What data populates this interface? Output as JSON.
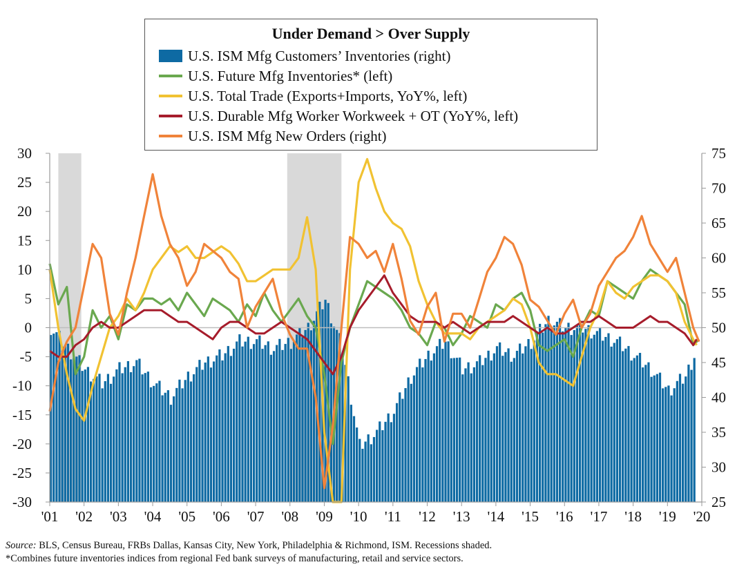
{
  "chart_data": {
    "type": "bar+line",
    "title": "Under Demand > Over Supply",
    "y_left": {
      "range": [
        -30,
        30
      ],
      "ticks": [
        "30",
        "25",
        "20",
        "15",
        "10",
        "5",
        "0",
        "-5",
        "-10",
        "-15",
        "-20",
        "-25",
        "-30"
      ]
    },
    "y_right": {
      "range": [
        25,
        75
      ],
      "ticks": [
        "75",
        "70",
        "65",
        "60",
        "55",
        "50",
        "45",
        "40",
        "35",
        "30",
        "25"
      ]
    },
    "x_range": [
      2001.0,
      2020.0
    ],
    "x_ticks": [
      "'01",
      "'02",
      "'03",
      "'04",
      "'05",
      "'06",
      "'07",
      "'08",
      "'09",
      "'10",
      "'11",
      "'12",
      "'13",
      "'14",
      "'15",
      "'16",
      "'17",
      "'18",
      "'19",
      "'20"
    ],
    "recessions": [
      [
        2001.25,
        2001.92
      ],
      [
        2007.92,
        2009.5
      ]
    ],
    "series": [
      {
        "name": "U.S. ISM Mfg Customers’ Inventories (right)",
        "kind": "bar",
        "axis": "right",
        "color": "#0e6aa3",
        "x": [
          2001.0,
          2001.5,
          2002.0,
          2002.5,
          2003.0,
          2003.5,
          2004.0,
          2004.5,
          2005.0,
          2005.5,
          2006.0,
          2006.5,
          2007.0,
          2007.5,
          2008.0,
          2008.5,
          2009.0,
          2009.5,
          2010.0,
          2010.5,
          2011.0,
          2011.5,
          2012.0,
          2012.5,
          2013.0,
          2013.5,
          2014.0,
          2014.5,
          2015.0,
          2015.5,
          2016.0,
          2016.5,
          2017.0,
          2017.5,
          2018.0,
          2018.5,
          2019.0,
          2019.5,
          2019.75
        ],
        "values": [
          50,
          47,
          44,
          42,
          44,
          45,
          42,
          40,
          43,
          45,
          46,
          48,
          48,
          47,
          48,
          50,
          54,
          47,
          33,
          35,
          38,
          43,
          46,
          48,
          44,
          45,
          47,
          46,
          48,
          51,
          50,
          50,
          49,
          48,
          46,
          44,
          41,
          43,
          46
        ]
      },
      {
        "name": "U.S. Future Mfg Inventories* (left)",
        "kind": "line",
        "axis": "left",
        "color": "#6aa84f",
        "x": [
          2001.0,
          2001.25,
          2001.5,
          2001.75,
          2002.0,
          2002.25,
          2002.5,
          2002.75,
          2003.0,
          2003.25,
          2003.5,
          2003.75,
          2004.0,
          2004.25,
          2004.5,
          2004.75,
          2005.0,
          2005.25,
          2005.5,
          2005.75,
          2006.0,
          2006.25,
          2006.5,
          2006.75,
          2007.0,
          2007.25,
          2007.5,
          2007.75,
          2008.0,
          2008.25,
          2008.5,
          2008.75,
          2009.0,
          2009.25,
          2009.5,
          2009.75,
          2010.0,
          2010.25,
          2010.5,
          2010.75,
          2011.0,
          2011.25,
          2011.5,
          2011.75,
          2012.0,
          2012.25,
          2012.5,
          2012.75,
          2013.0,
          2013.25,
          2013.5,
          2013.75,
          2014.0,
          2014.25,
          2014.5,
          2014.75,
          2015.0,
          2015.25,
          2015.5,
          2015.75,
          2016.0,
          2016.25,
          2016.5,
          2016.75,
          2017.0,
          2017.25,
          2017.5,
          2017.75,
          2018.0,
          2018.25,
          2018.5,
          2018.75,
          2019.0,
          2019.25,
          2019.5,
          2019.75,
          2019.92
        ],
        "values": [
          11,
          4,
          7,
          -8,
          -5,
          3,
          0,
          2,
          -2,
          4,
          3,
          5,
          5,
          4,
          5,
          3,
          6,
          4,
          2,
          5,
          4,
          3,
          1,
          4,
          2,
          6,
          3,
          1,
          3,
          5,
          2,
          0,
          -8,
          -20,
          -6,
          0,
          4,
          8,
          7,
          6,
          5,
          3,
          0,
          -1,
          -3,
          1,
          0,
          -3,
          -1,
          2,
          1,
          0,
          4,
          3,
          5,
          6,
          3,
          -3,
          -4,
          -3,
          -2,
          -5,
          0,
          3,
          2,
          8,
          7,
          6,
          5,
          8,
          10,
          9,
          8,
          6,
          4,
          -3,
          -2
        ]
      },
      {
        "name": "U.S. Total Trade (Exports+Imports, YoY%, left)",
        "kind": "line",
        "axis": "left",
        "color": "#f1c232",
        "x": [
          2001.0,
          2001.25,
          2001.5,
          2001.75,
          2002.0,
          2002.25,
          2002.5,
          2002.75,
          2003.0,
          2003.25,
          2003.5,
          2003.75,
          2004.0,
          2004.25,
          2004.5,
          2004.75,
          2005.0,
          2005.25,
          2005.5,
          2005.75,
          2006.0,
          2006.25,
          2006.5,
          2006.75,
          2007.0,
          2007.25,
          2007.5,
          2007.75,
          2008.0,
          2008.25,
          2008.5,
          2008.75,
          2009.0,
          2009.25,
          2009.5,
          2009.75,
          2010.0,
          2010.25,
          2010.5,
          2010.75,
          2011.0,
          2011.25,
          2011.5,
          2011.75,
          2012.0,
          2012.25,
          2012.5,
          2012.75,
          2013.0,
          2013.25,
          2013.5,
          2013.75,
          2014.0,
          2014.25,
          2014.5,
          2014.75,
          2015.0,
          2015.25,
          2015.5,
          2015.75,
          2016.0,
          2016.25,
          2016.5,
          2016.75,
          2017.0,
          2017.25,
          2017.5,
          2017.75,
          2018.0,
          2018.25,
          2018.5,
          2018.75,
          2019.0,
          2019.25,
          2019.5,
          2019.75,
          2019.85
        ],
        "values": [
          10,
          0,
          -8,
          -14,
          -16,
          -10,
          -5,
          0,
          2,
          5,
          3,
          6,
          10,
          12,
          14,
          13,
          14,
          12,
          12,
          13,
          14,
          13,
          11,
          8,
          8,
          9,
          10,
          10,
          10,
          12,
          19,
          10,
          -18,
          -30,
          -30,
          10,
          25,
          29,
          24,
          20,
          18,
          17,
          14,
          8,
          4,
          1,
          -1,
          -1,
          -1,
          -2,
          0,
          1,
          2,
          3,
          5,
          4,
          0,
          -6,
          -8,
          -8,
          -9,
          -10,
          -5,
          0,
          3,
          8,
          6,
          5,
          7,
          8,
          9,
          9,
          8,
          6,
          1,
          -2,
          -3
        ]
      },
      {
        "name": "U.S. Durable Mfg Worker Workweek + OT (YoY%, left)",
        "kind": "line",
        "axis": "left",
        "color": "#a61c2b",
        "x": [
          2001.0,
          2001.25,
          2001.5,
          2001.75,
          2002.0,
          2002.25,
          2002.5,
          2002.75,
          2003.0,
          2003.25,
          2003.5,
          2003.75,
          2004.0,
          2004.25,
          2004.5,
          2004.75,
          2005.0,
          2005.25,
          2005.5,
          2005.75,
          2006.0,
          2006.25,
          2006.5,
          2006.75,
          2007.0,
          2007.25,
          2007.5,
          2007.75,
          2008.0,
          2008.25,
          2008.5,
          2008.75,
          2009.0,
          2009.25,
          2009.5,
          2009.75,
          2010.0,
          2010.25,
          2010.5,
          2010.75,
          2011.0,
          2011.25,
          2011.5,
          2011.75,
          2012.0,
          2012.25,
          2012.5,
          2012.75,
          2013.0,
          2013.25,
          2013.5,
          2013.75,
          2014.0,
          2014.25,
          2014.5,
          2014.75,
          2015.0,
          2015.25,
          2015.5,
          2015.75,
          2016.0,
          2016.25,
          2016.5,
          2016.75,
          2017.0,
          2017.25,
          2017.5,
          2017.75,
          2018.0,
          2018.25,
          2018.5,
          2018.75,
          2019.0,
          2019.25,
          2019.5,
          2019.75,
          2019.85
        ],
        "values": [
          -4,
          -5,
          -5,
          -3,
          -2,
          0,
          1,
          0,
          0,
          1,
          2,
          3,
          3,
          3,
          2,
          1,
          1,
          0,
          -1,
          -2,
          0,
          1,
          1,
          0,
          -1,
          -1,
          0,
          1,
          0,
          -1,
          -2,
          -4,
          -6,
          -8,
          -5,
          0,
          3,
          5,
          7,
          9,
          6,
          4,
          2,
          1,
          1,
          1,
          0,
          1,
          0,
          -1,
          0,
          1,
          1,
          1,
          2,
          1,
          0,
          -1,
          0,
          -1,
          -1,
          0,
          1,
          1,
          2,
          1,
          0,
          0,
          0,
          1,
          2,
          1,
          1,
          0,
          -1,
          -3,
          -2
        ]
      },
      {
        "name": "U.S. ISM Mfg New Orders (right)",
        "kind": "line",
        "axis": "right",
        "color": "#f0833a",
        "x": [
          2001.0,
          2001.25,
          2001.5,
          2001.75,
          2002.0,
          2002.25,
          2002.5,
          2002.75,
          2003.0,
          2003.25,
          2003.5,
          2003.75,
          2004.0,
          2004.25,
          2004.5,
          2004.75,
          2005.0,
          2005.25,
          2005.5,
          2005.75,
          2006.0,
          2006.25,
          2006.5,
          2006.75,
          2007.0,
          2007.25,
          2007.5,
          2007.75,
          2008.0,
          2008.25,
          2008.5,
          2008.75,
          2009.0,
          2009.25,
          2009.5,
          2009.75,
          2010.0,
          2010.25,
          2010.5,
          2010.75,
          2011.0,
          2011.25,
          2011.5,
          2011.75,
          2012.0,
          2012.25,
          2012.5,
          2012.75,
          2013.0,
          2013.25,
          2013.5,
          2013.75,
          2014.0,
          2014.25,
          2014.5,
          2014.75,
          2015.0,
          2015.25,
          2015.5,
          2015.75,
          2016.0,
          2016.25,
          2016.5,
          2016.75,
          2017.0,
          2017.25,
          2017.5,
          2017.75,
          2018.0,
          2018.25,
          2018.5,
          2018.75,
          2019.0,
          2019.25,
          2019.5,
          2019.75,
          2019.92
        ],
        "values": [
          38,
          45,
          48,
          50,
          56,
          62,
          60,
          52,
          49,
          55,
          60,
          66,
          72,
          66,
          62,
          60,
          56,
          58,
          62,
          61,
          60,
          58,
          57,
          50,
          53,
          55,
          57,
          52,
          49,
          47,
          47,
          40,
          27,
          36,
          50,
          63,
          62,
          60,
          61,
          58,
          62,
          57,
          51,
          49,
          53,
          55,
          48,
          52,
          52,
          50,
          54,
          58,
          60,
          63,
          62,
          59,
          54,
          53,
          51,
          49,
          52,
          54,
          50,
          52,
          56,
          58,
          60,
          61,
          63,
          66,
          62,
          60,
          58,
          60,
          55,
          50,
          48
        ]
      }
    ]
  },
  "legend": {
    "title": "Under Demand > Over Supply",
    "items": [
      {
        "label": "U.S. ISM Mfg Customers’ Inventories (right)",
        "color": "#0e6aa3"
      },
      {
        "label": "U.S. Future Mfg Inventories* (left)",
        "color": "#6aa84f"
      },
      {
        "label": "U.S. Total Trade (Exports+Imports, YoY%, left)",
        "color": "#f1c232"
      },
      {
        "label": "U.S. Durable Mfg Worker Workweek + OT (YoY%, left)",
        "color": "#a61c2b"
      },
      {
        "label": "U.S. ISM Mfg New Orders (right)",
        "color": "#f0833a"
      }
    ]
  },
  "footer": {
    "source_label": "Source:",
    "source_text": " BLS, Census Bureau, FRBs Dallas, Kansas City, New York, Philadelphia & Richmond, ISM. Recessions shaded.",
    "note": "*Combines future inventories indices from regional Fed bank surveys of manufacturing, retail and service sectors."
  }
}
